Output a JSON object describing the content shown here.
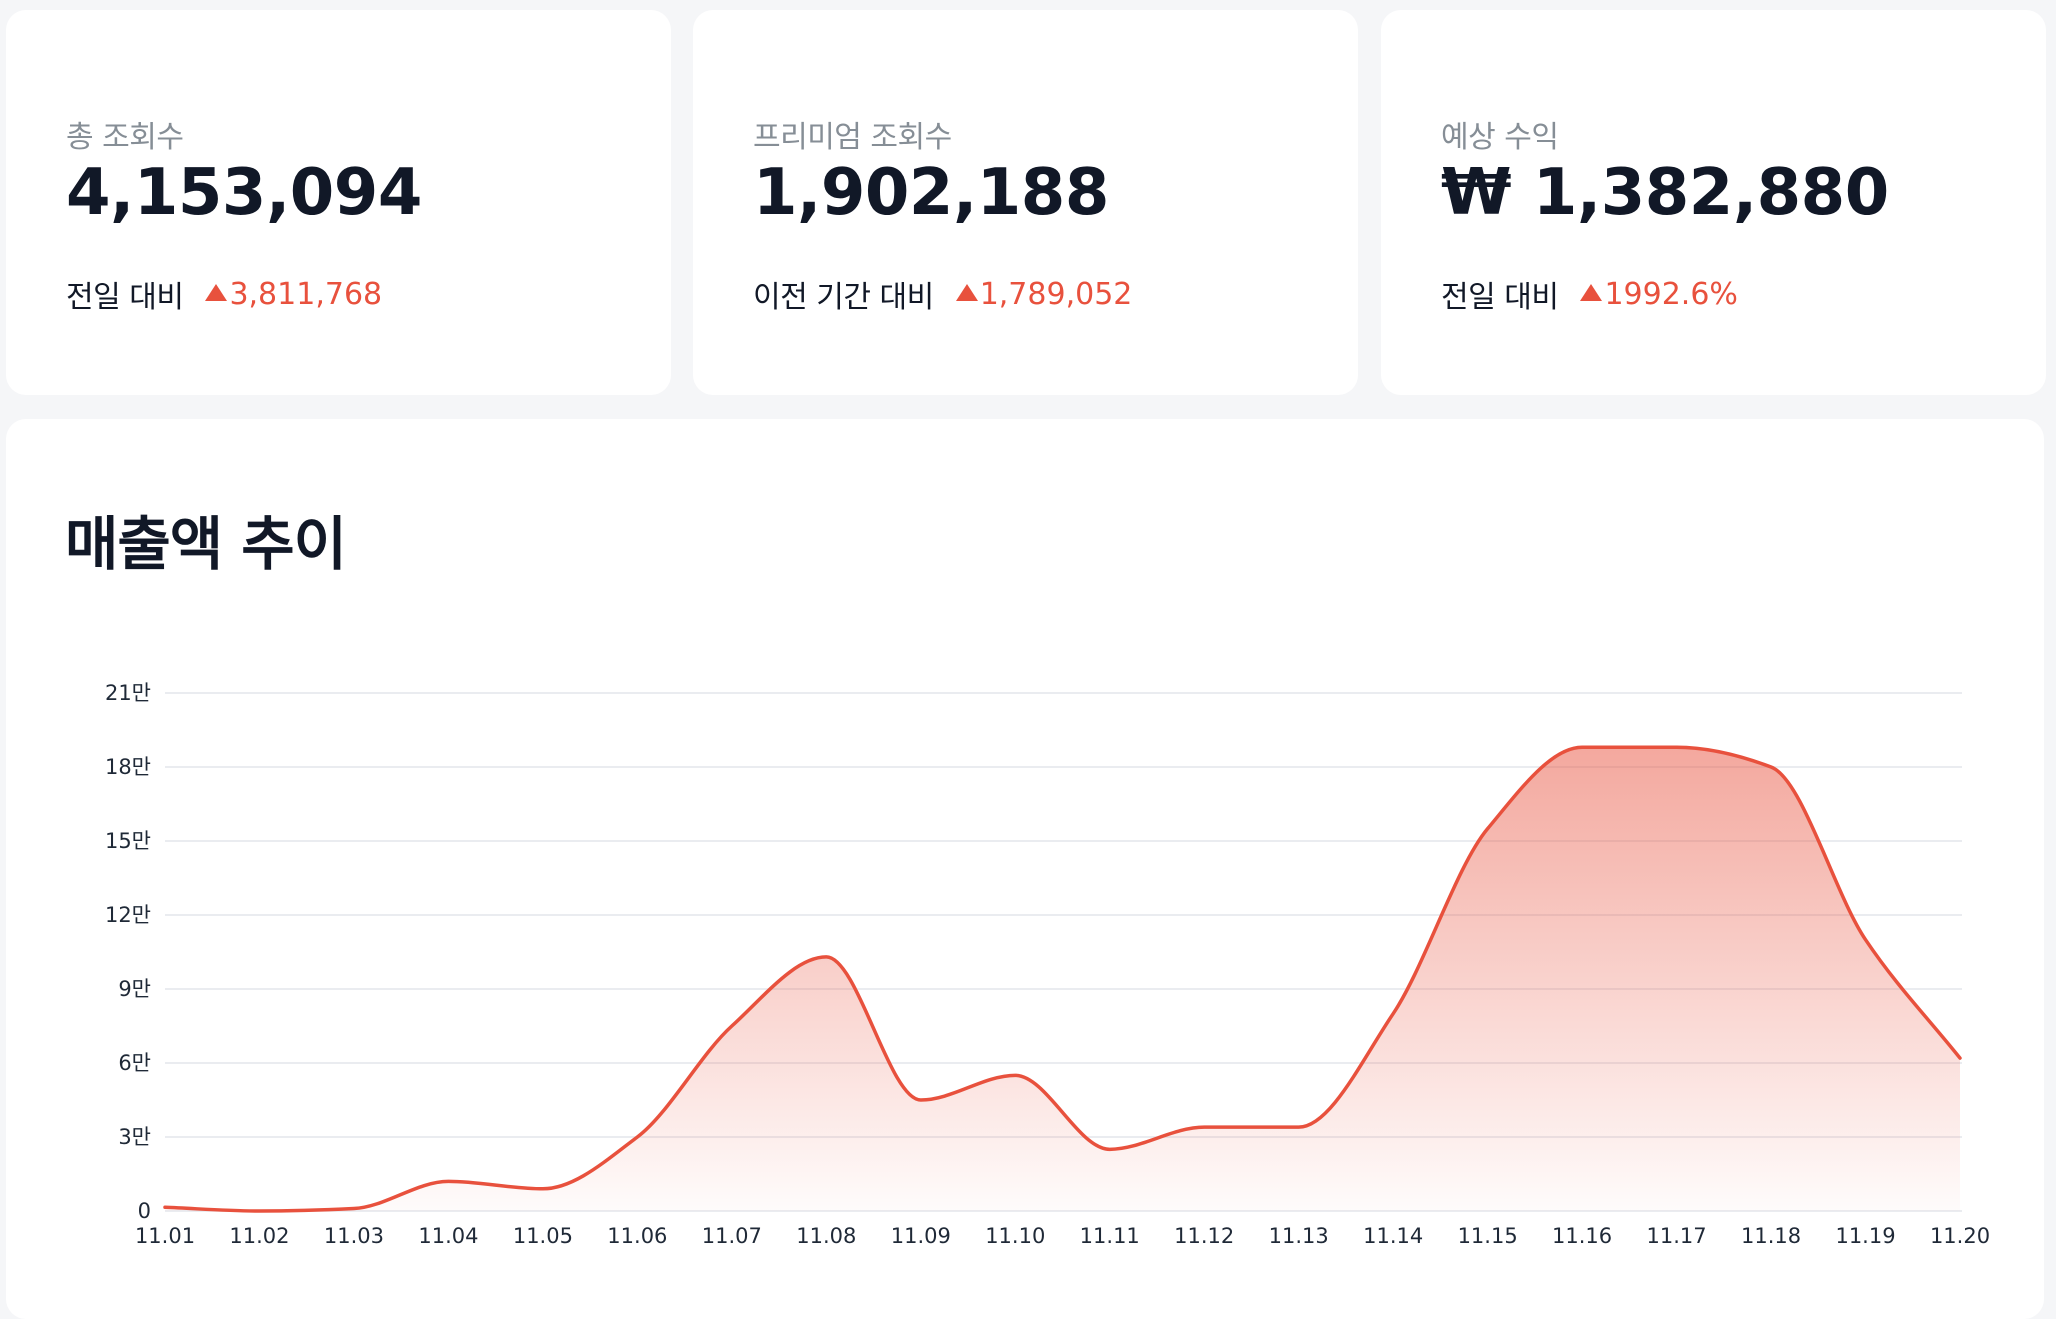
{
  "stats": [
    {
      "label": "총 조회수",
      "value": "4,153,094",
      "compare_label": "전일 대비",
      "change": "3,811,768",
      "direction_icon": "triangle-up-icon"
    },
    {
      "label": "프리미엄 조회수",
      "value": "1,902,188",
      "compare_label": "이전 기간 대비",
      "change": "1,789,052",
      "direction_icon": "triangle-up-icon"
    },
    {
      "label": "예상 수익",
      "value": "₩ 1,382,880",
      "compare_label": "전일 대비",
      "change": "1992.6%",
      "direction_icon": "triangle-up-icon"
    }
  ],
  "colors": {
    "accent": "#e8513d",
    "background": "#f5f6f8",
    "card": "#ffffff",
    "muted_text": "#868e96",
    "gridline": "#e3e6ec"
  },
  "chart_data": {
    "type": "area",
    "title": "매출액 추이",
    "xlabel": "",
    "ylabel": "",
    "categories": [
      "11.01",
      "11.02",
      "11.03",
      "11.04",
      "11.05",
      "11.06",
      "11.07",
      "11.08",
      "11.09",
      "11.10",
      "11.11",
      "11.12",
      "11.13",
      "11.14",
      "11.15",
      "11.16",
      "11.17",
      "11.18",
      "11.19",
      "11.20"
    ],
    "values": [
      1500,
      0,
      1000,
      12000,
      9000,
      30000,
      75000,
      103000,
      45000,
      55000,
      25000,
      34000,
      34000,
      80000,
      155000,
      188000,
      188000,
      180000,
      110000,
      62000
    ],
    "ylim": [
      0,
      210000
    ],
    "y_ticks": [
      {
        "value": 0,
        "label": "0"
      },
      {
        "value": 30000,
        "label": "3만"
      },
      {
        "value": 60000,
        "label": "6만"
      },
      {
        "value": 90000,
        "label": "9만"
      },
      {
        "value": 120000,
        "label": "12만"
      },
      {
        "value": 150000,
        "label": "15만"
      },
      {
        "value": 180000,
        "label": "18만"
      },
      {
        "value": 210000,
        "label": "21만"
      }
    ],
    "grid": true,
    "legend": "none"
  }
}
